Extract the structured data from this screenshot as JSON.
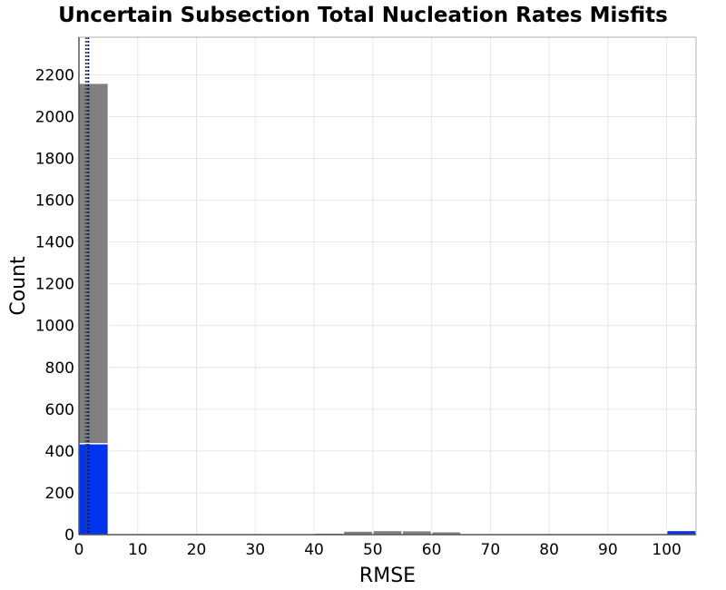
{
  "chart_data": {
    "type": "bar",
    "title": "Uncertain Subsection Total Nucleation Rates Misfits",
    "xlabel": "RMSE",
    "ylabel": "Count",
    "xlim": [
      0,
      105
    ],
    "ylim": [
      0,
      2380
    ],
    "xticks": [
      "0",
      "10",
      "20",
      "30",
      "40",
      "50",
      "60",
      "70",
      "80",
      "90",
      "100"
    ],
    "yticks": [
      "0",
      "200",
      "400",
      "600",
      "800",
      "1000",
      "1200",
      "1400",
      "1600",
      "1800",
      "2000",
      "2200"
    ],
    "grid": true,
    "bin_width": 5,
    "series": [
      {
        "color": "#808080",
        "bins": [
          {
            "x0": 0,
            "x1": 5,
            "count": 2160
          },
          {
            "x0": 40,
            "x1": 45,
            "count": 8
          },
          {
            "x0": 45,
            "x1": 50,
            "count": 17
          },
          {
            "x0": 50,
            "x1": 55,
            "count": 20
          },
          {
            "x0": 55,
            "x1": 60,
            "count": 19
          },
          {
            "x0": 60,
            "x1": 65,
            "count": 14
          },
          {
            "x0": 65,
            "x1": 70,
            "count": 4
          }
        ]
      },
      {
        "color": "#0033ee",
        "bins": [
          {
            "x0": 0,
            "x1": 5,
            "count": 435
          },
          {
            "x0": 100,
            "x1": 105,
            "count": 20
          }
        ]
      }
    ],
    "vlines": [
      {
        "x": 1.2,
        "color": "#444444",
        "style": "dotted"
      },
      {
        "x": 1.6,
        "color": "#001a66",
        "style": "dotted"
      }
    ]
  }
}
